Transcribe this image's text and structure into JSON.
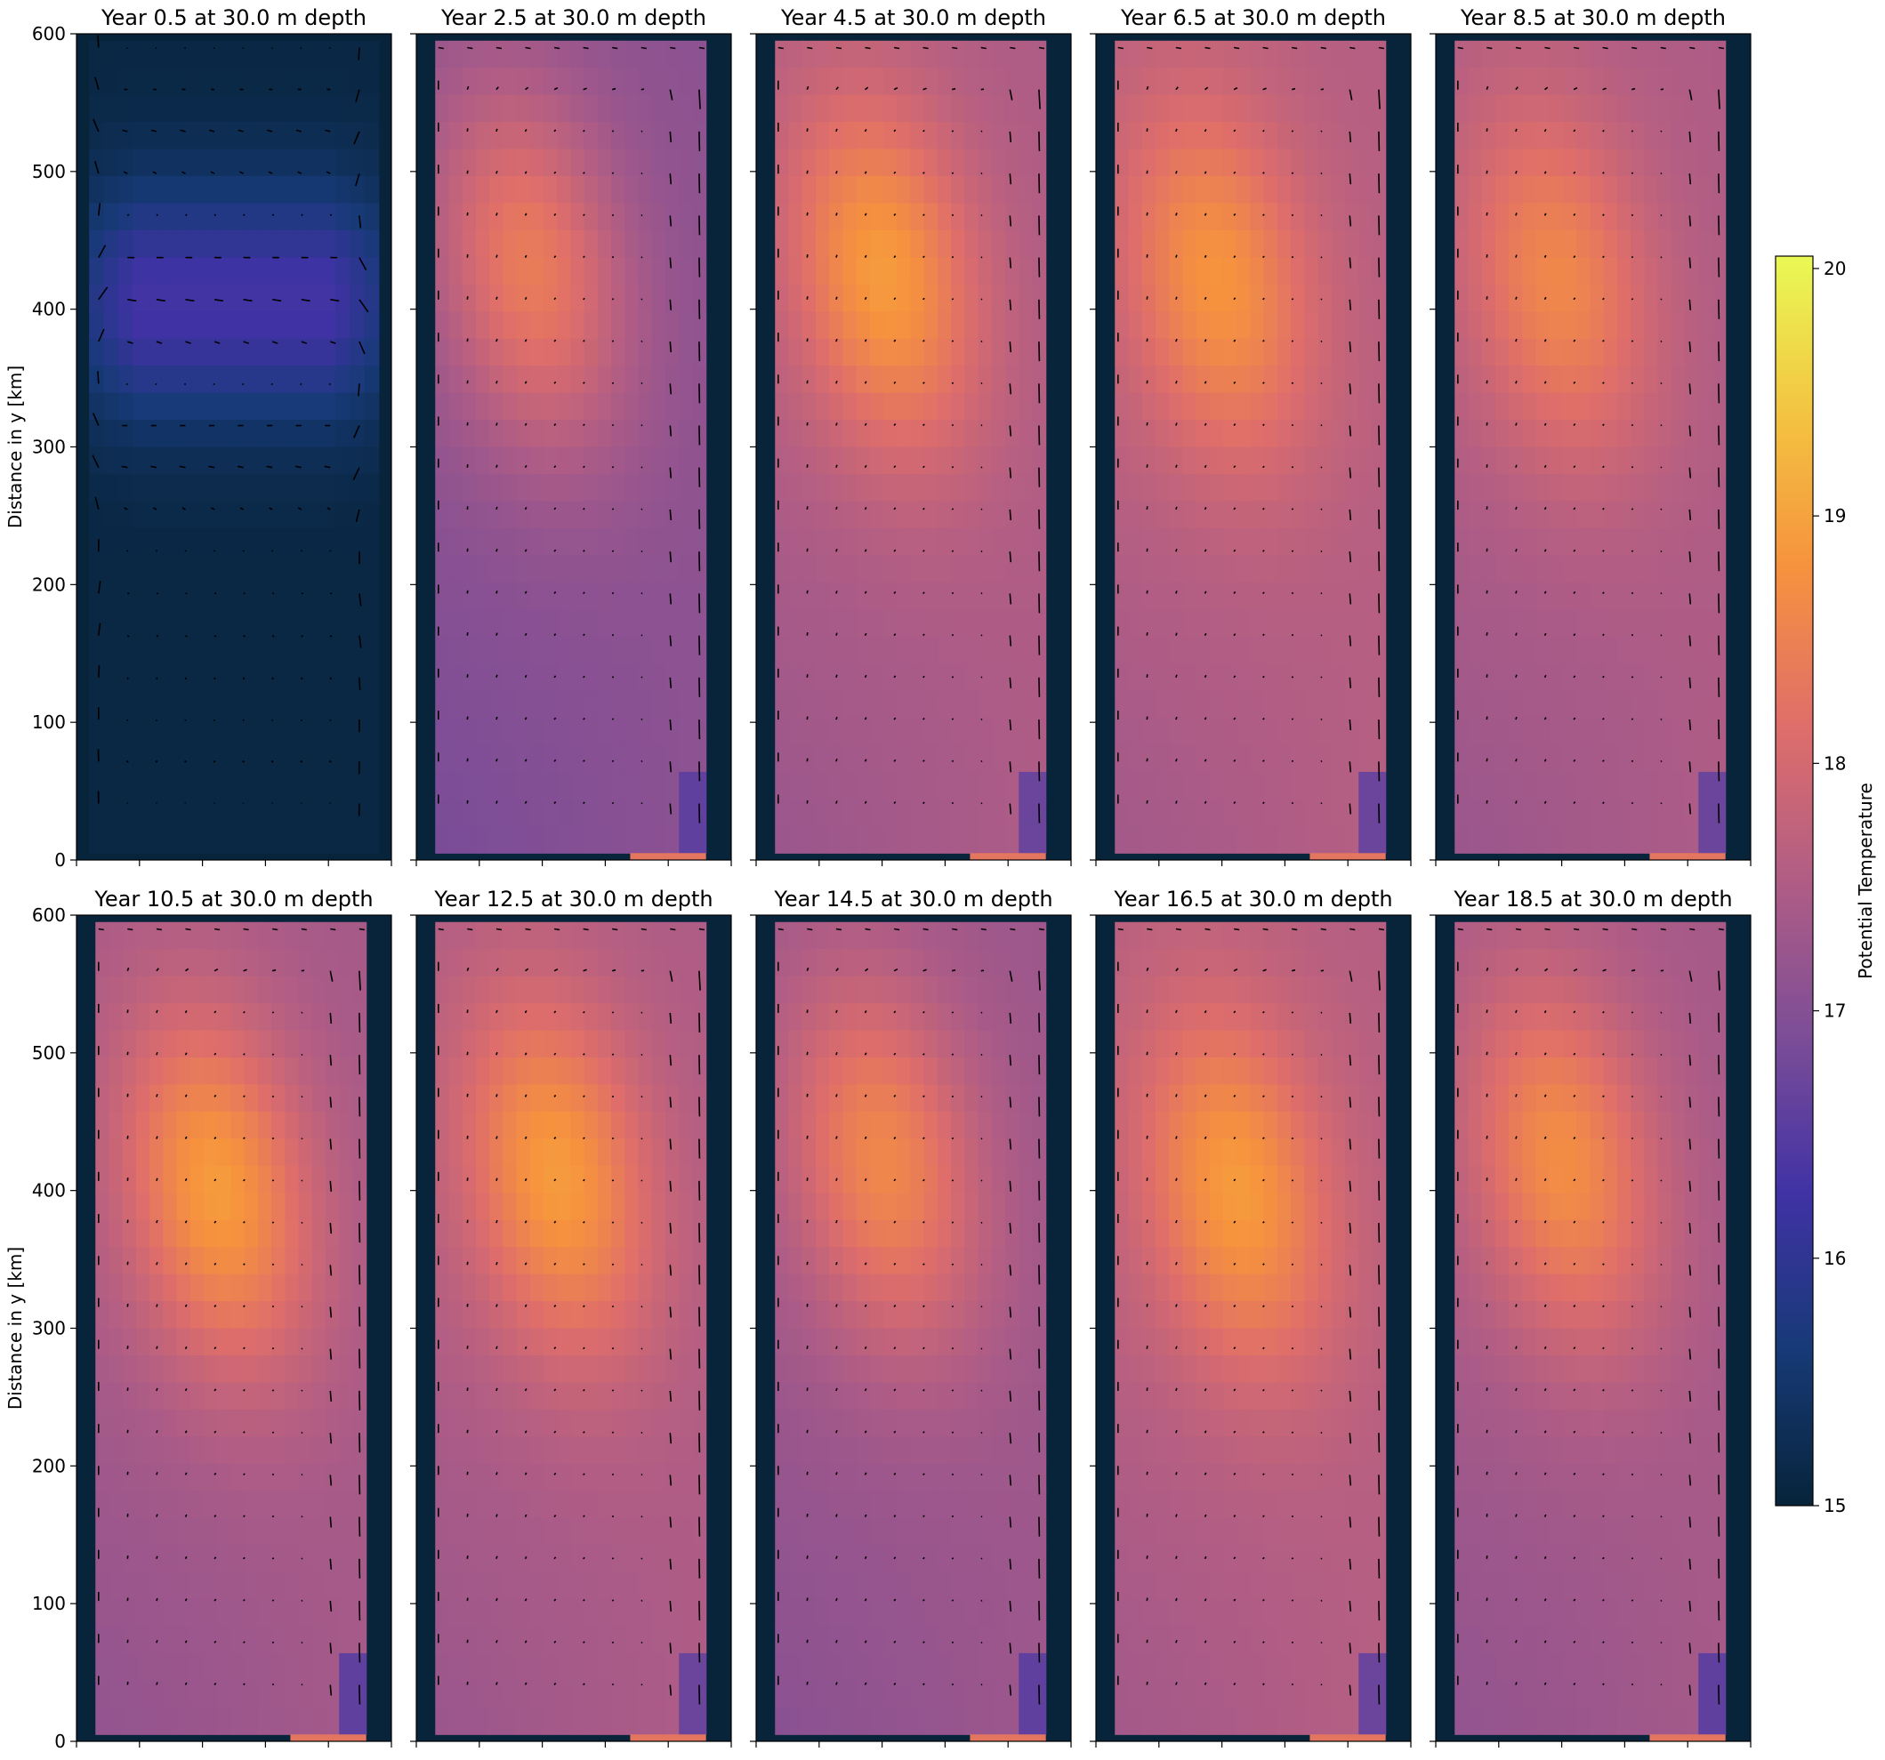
{
  "chart_data": {
    "type": "heatmap",
    "layout": {
      "rows": 2,
      "cols": 5
    },
    "ylabel": "Distance in y [km]",
    "yticks": [
      0,
      100,
      200,
      300,
      400,
      500,
      600
    ],
    "ylim": [
      0,
      600
    ],
    "field_ylim": [
      5,
      595
    ],
    "colorbar": {
      "label": "Potential Temperature",
      "ticks": [
        15,
        16,
        17,
        18,
        19,
        20
      ],
      "range": [
        15,
        20.05
      ],
      "colormap": [
        "#07243a",
        "#173a77",
        "#4032a5",
        "#7c4d97",
        "#b05d85",
        "#df6e6a",
        "#f6923e",
        "#f3c441",
        "#e9f955"
      ]
    },
    "panels": [
      {
        "title": "Year 0.5 at 30.0 m depth",
        "background": 15.1,
        "peak": 16.3,
        "cold_corner": 0,
        "peak_center": [
          0.5,
          405
        ]
      },
      {
        "title": "Year 2.5 at 30.0 m depth",
        "background": 17.1,
        "peak": 18.4,
        "cold_corner": 16.6,
        "peak_center": [
          0.35,
          430
        ]
      },
      {
        "title": "Year 4.5 at 30.0 m depth",
        "background": 17.5,
        "peak": 18.9,
        "cold_corner": 16.7,
        "peak_center": [
          0.4,
          425
        ]
      },
      {
        "title": "Year 6.5 at 30.0 m depth",
        "background": 17.6,
        "peak": 18.8,
        "cold_corner": 16.7,
        "peak_center": [
          0.38,
          420
        ]
      },
      {
        "title": "Year 8.5 at 30.0 m depth",
        "background": 17.5,
        "peak": 18.6,
        "cold_corner": 16.7,
        "peak_center": [
          0.38,
          420
        ]
      },
      {
        "title": "Year 10.5 at 30.0 m depth",
        "background": 17.4,
        "peak": 18.9,
        "cold_corner": 16.6,
        "peak_center": [
          0.45,
          400
        ]
      },
      {
        "title": "Year 12.5 at 30.0 m depth",
        "background": 17.5,
        "peak": 18.9,
        "cold_corner": 16.7,
        "peak_center": [
          0.45,
          410
        ]
      },
      {
        "title": "Year 14.5 at 30.0 m depth",
        "background": 17.3,
        "peak": 18.6,
        "cold_corner": 16.6,
        "peak_center": [
          0.4,
          420
        ]
      },
      {
        "title": "Year 16.5 at 30.0 m depth",
        "background": 17.6,
        "peak": 18.9,
        "cold_corner": 16.7,
        "peak_center": [
          0.45,
          400
        ]
      },
      {
        "title": "Year 18.5 at 30.0 m depth",
        "background": 17.4,
        "peak": 18.7,
        "cold_corner": 16.6,
        "peak_center": [
          0.4,
          420
        ]
      }
    ],
    "grid": false,
    "legend": "colorbar-right"
  }
}
